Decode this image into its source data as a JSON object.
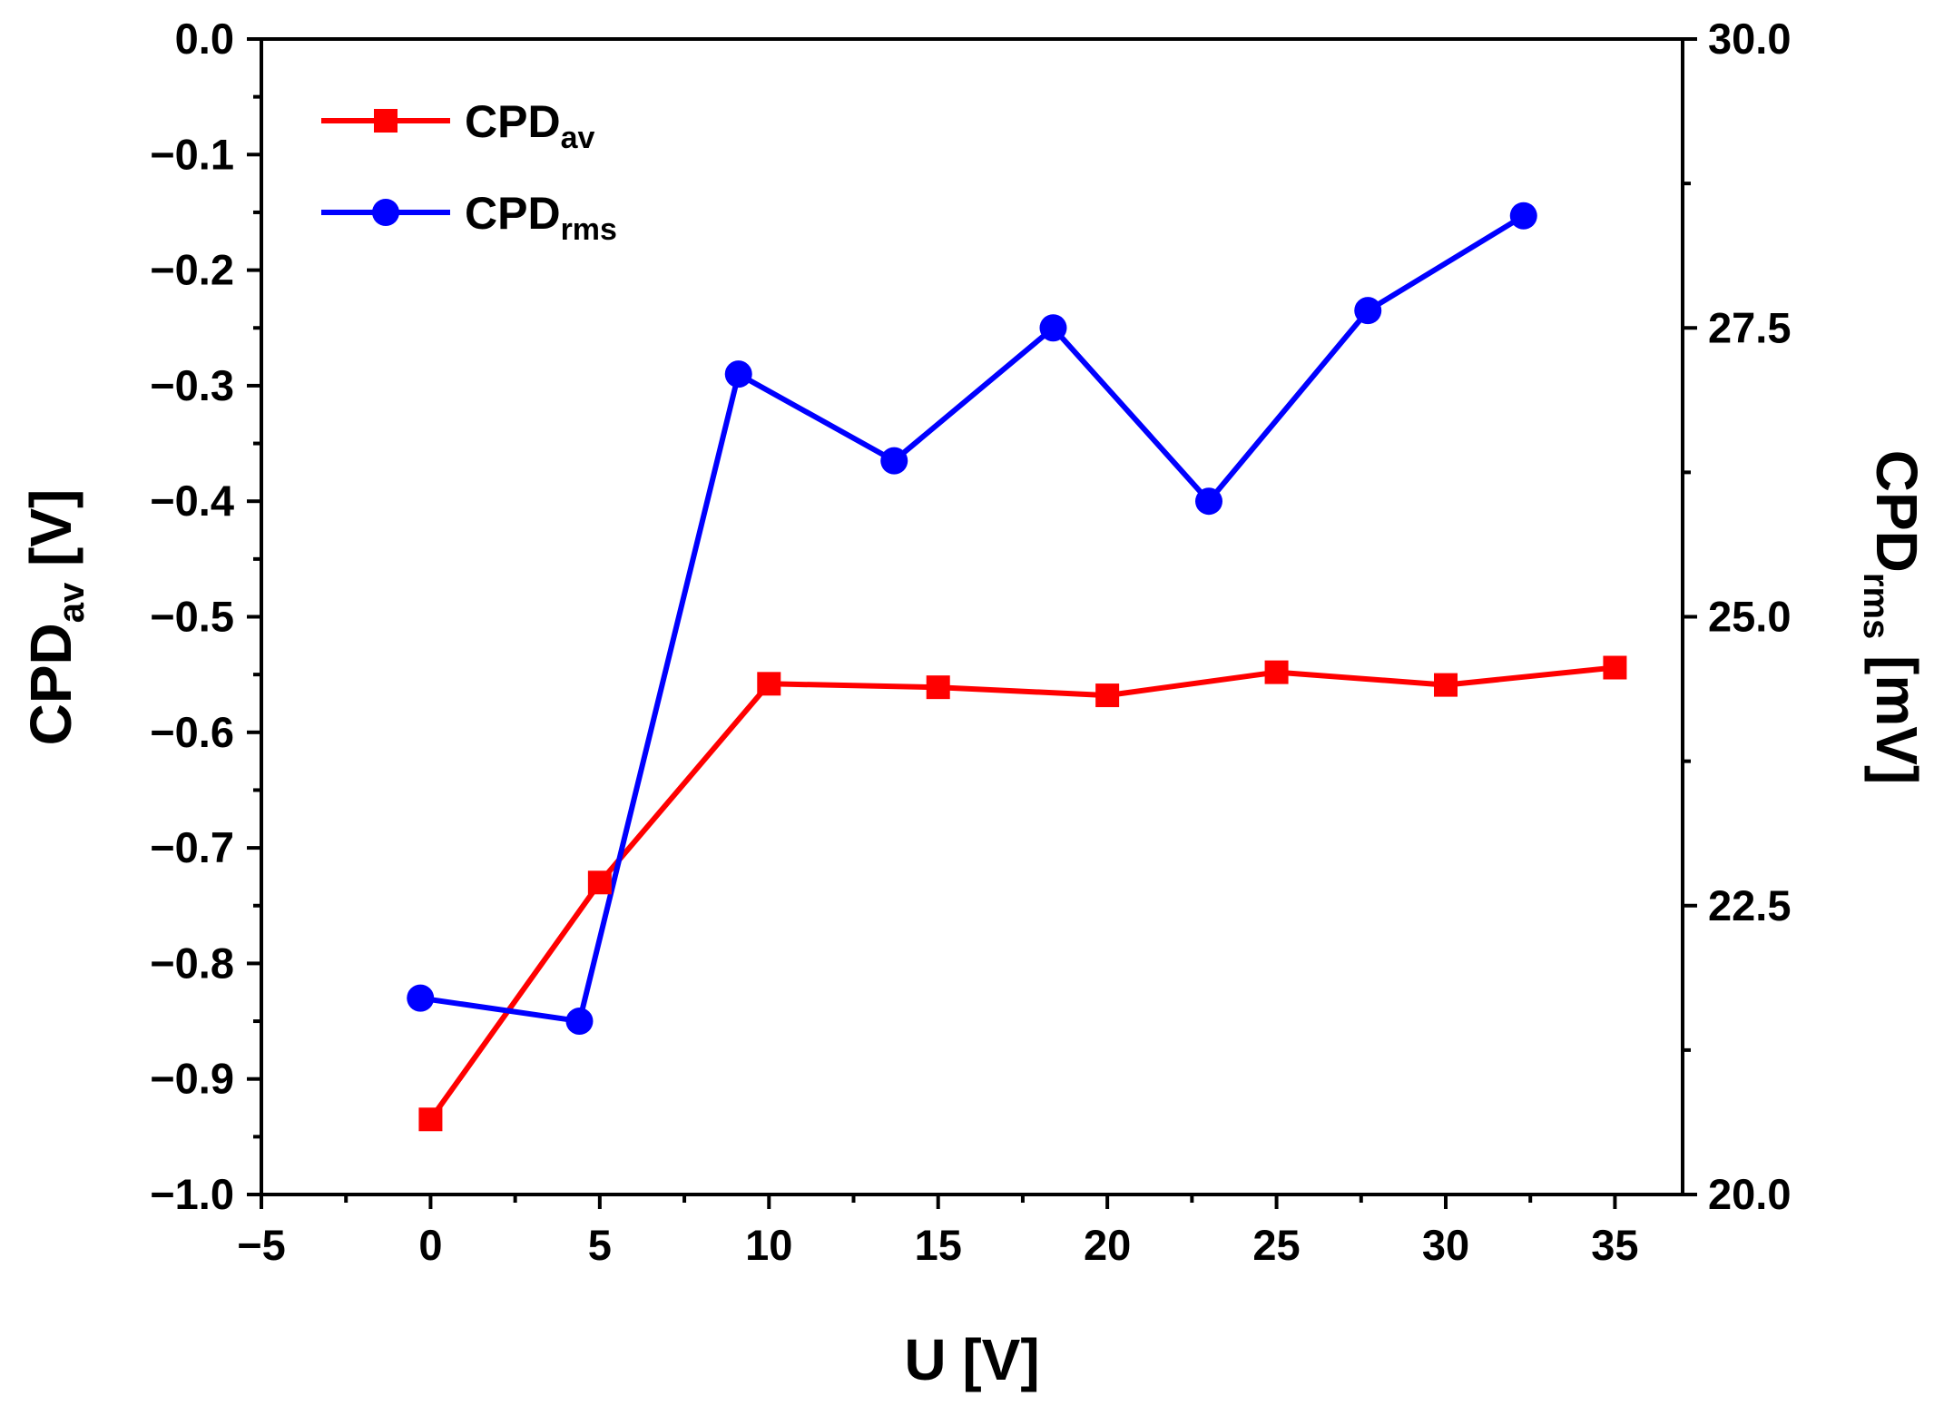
{
  "chart_data": {
    "type": "line",
    "xlabel": "U [V]",
    "ylabel_left": {
      "main": "CPD",
      "sub": "av",
      "unit": " [V]"
    },
    "ylabel_right": {
      "main": "CPD",
      "sub": "rms",
      "unit": " [mV]"
    },
    "x_range": [
      -5,
      37
    ],
    "x_ticks": [
      -5,
      0,
      5,
      10,
      15,
      20,
      25,
      30,
      35
    ],
    "x_tick_labels": [
      "−5",
      "0",
      "5",
      "10",
      "15",
      "20",
      "25",
      "30",
      "35"
    ],
    "y_left_range": [
      -1.0,
      0.0
    ],
    "y_left_ticks": [
      0.0,
      -0.1,
      -0.2,
      -0.3,
      -0.4,
      -0.5,
      -0.6,
      -0.7,
      -0.8,
      -0.9,
      -1.0
    ],
    "y_left_tick_labels": [
      "0.0",
      "−0.1",
      "−0.2",
      "−0.3",
      "−0.4",
      "−0.5",
      "−0.6",
      "−0.7",
      "−0.8",
      "−0.9",
      "−1.0"
    ],
    "y_right_range": [
      20.0,
      30.0
    ],
    "y_right_ticks": [
      30.0,
      27.5,
      25.0,
      22.5,
      20.0
    ],
    "y_right_tick_labels": [
      "30.0",
      "27.5",
      "25.0",
      "22.5",
      "20.0"
    ],
    "grid": false,
    "legend_position": "top-left",
    "series": [
      {
        "name": "CPD_av",
        "label_main": "CPD",
        "label_sub": "av",
        "axis": "left",
        "marker": "square",
        "color": "#ff0000",
        "x": [
          0,
          5,
          10,
          15,
          20,
          25,
          30,
          35
        ],
        "y": [
          -0.935,
          -0.73,
          -0.558,
          -0.561,
          -0.568,
          -0.548,
          -0.559,
          -0.544
        ]
      },
      {
        "name": "CPD_rms",
        "label_main": "CPD",
        "label_sub": "rms",
        "axis": "right",
        "marker": "circle",
        "color": "#0000ff",
        "x": [
          -0.3,
          4.4,
          9.1,
          13.7,
          18.4,
          23.0,
          27.7,
          32.3
        ],
        "y": [
          21.7,
          21.5,
          27.1,
          26.35,
          27.5,
          26.0,
          27.65,
          28.47
        ]
      }
    ]
  }
}
